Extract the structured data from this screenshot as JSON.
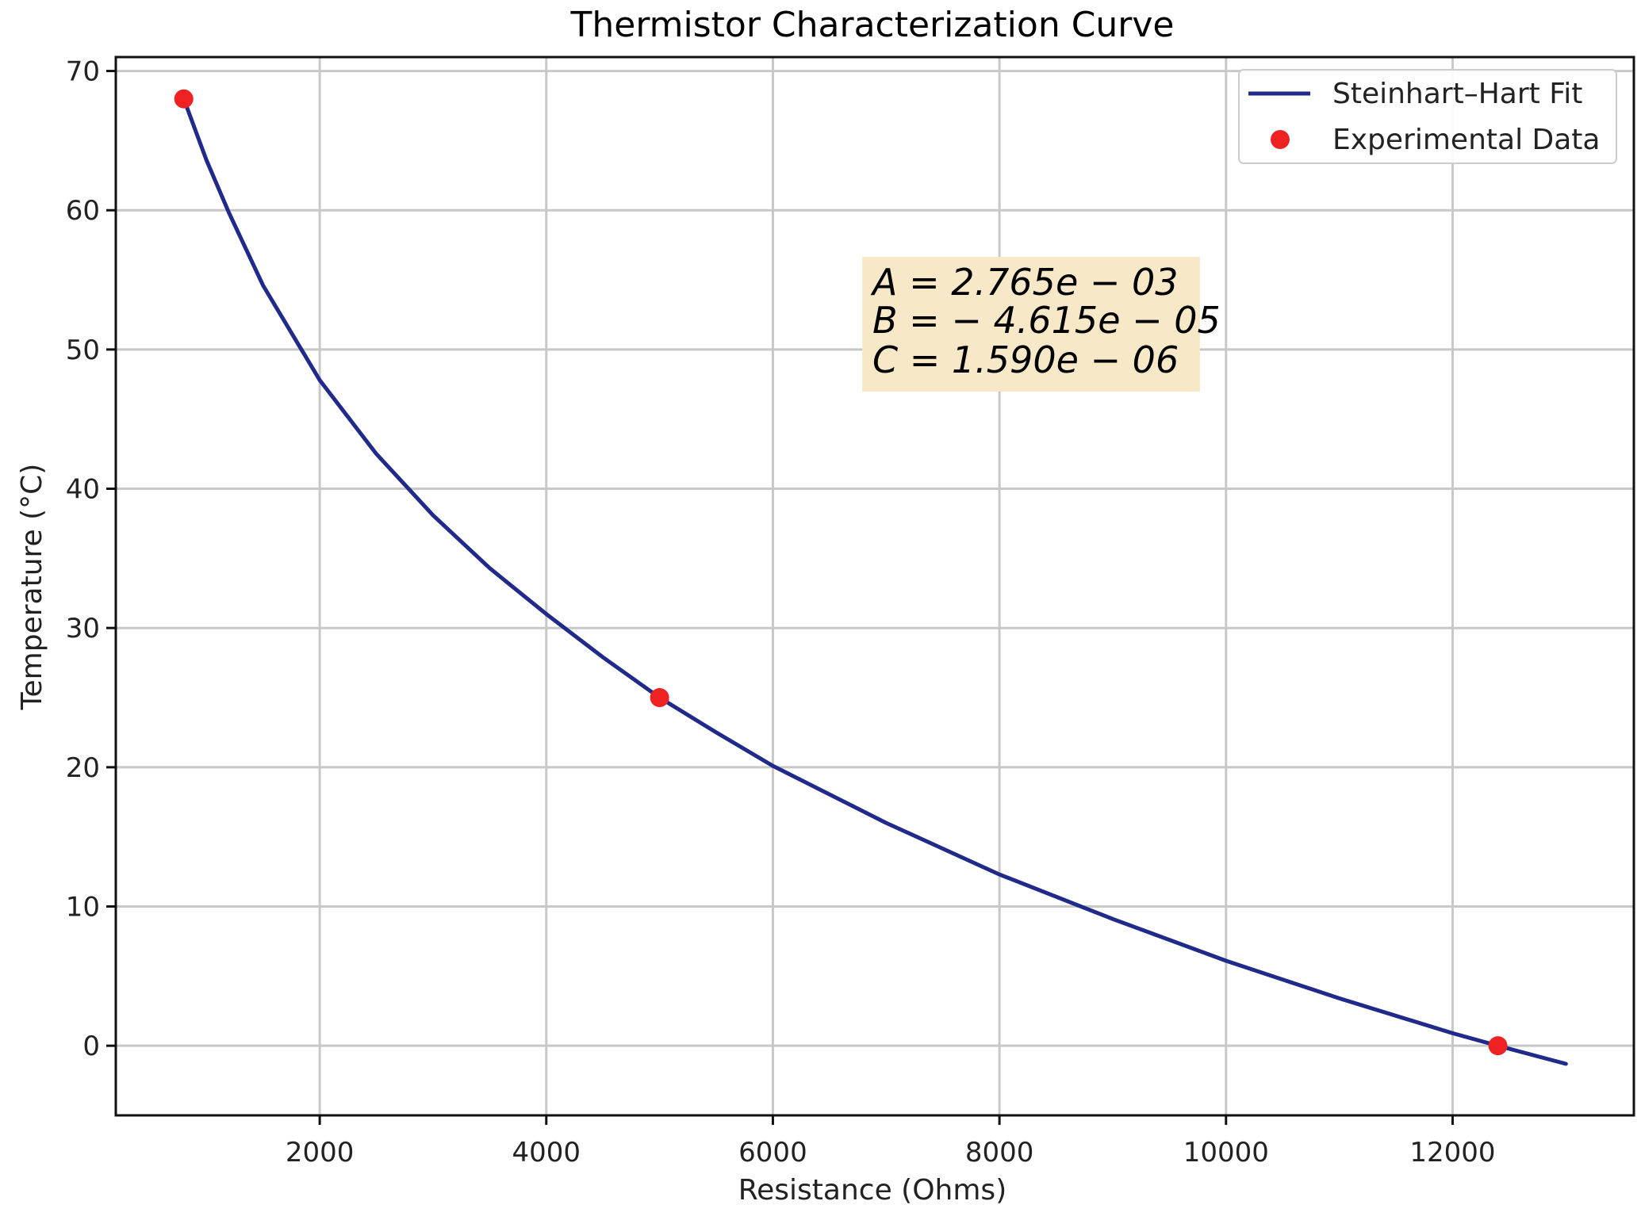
{
  "chart_data": {
    "type": "line",
    "title": "Thermistor Characterization Curve",
    "xlabel": "Resistance (Ohms)",
    "ylabel": "Temperature (°C)",
    "xlim": [
      200,
      13600
    ],
    "ylim": [
      -5,
      71
    ],
    "x_ticks": [
      2000,
      4000,
      6000,
      8000,
      10000,
      12000
    ],
    "x_tick_labels": [
      "2000",
      "4000",
      "6000",
      "8000",
      "10000",
      "12000"
    ],
    "y_ticks": [
      0,
      10,
      20,
      30,
      40,
      50,
      60,
      70
    ],
    "y_tick_labels": [
      "0",
      "10",
      "20",
      "30",
      "40",
      "50",
      "60",
      "70"
    ],
    "grid": true,
    "legend_position": "top-right",
    "series": [
      {
        "name": "Steinhart–Hart Fit",
        "kind": "line",
        "color": "#1f2a8a",
        "x": [
          800,
          1000,
          1200,
          1500,
          2000,
          2500,
          3000,
          3500,
          4000,
          4500,
          5000,
          5500,
          6000,
          7000,
          8000,
          9000,
          10000,
          11000,
          12000,
          12400,
          13000
        ],
        "y": [
          68.0,
          63.6,
          59.8,
          54.6,
          47.8,
          42.5,
          38.1,
          34.3,
          31.0,
          27.9,
          25.0,
          22.5,
          20.1,
          16.0,
          12.3,
          9.1,
          6.1,
          3.4,
          0.9,
          0.0,
          -1.3
        ]
      },
      {
        "name": "Experimental Data",
        "kind": "scatter",
        "color": "#ee2222",
        "x": [
          800,
          5000,
          12400
        ],
        "y": [
          68,
          25,
          0
        ]
      }
    ],
    "annotation": {
      "lines": [
        "A = 2.765e − 03",
        "B = − 4.615e − 05",
        "C = 1.590e − 06"
      ],
      "background": "#f7e8c8"
    }
  }
}
